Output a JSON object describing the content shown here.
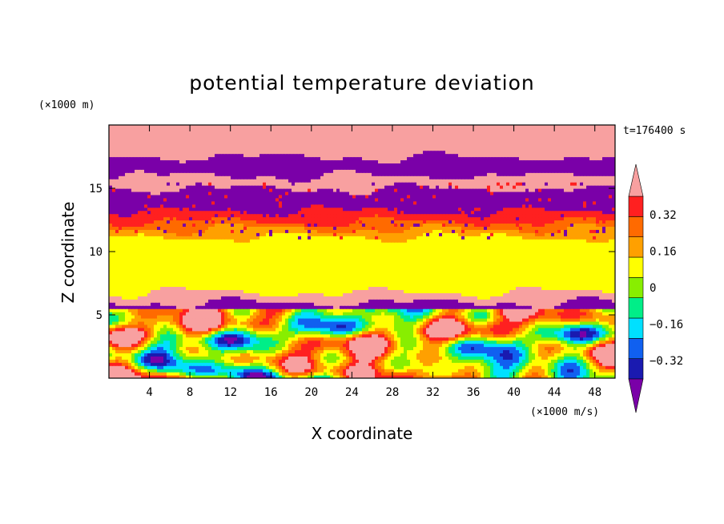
{
  "chart_data": {
    "type": "heatmap",
    "title": "potential temperature deviation",
    "xlabel": "X coordinate",
    "ylabel": "Z coordinate",
    "x_unit": "(×1000 m/s)",
    "y_unit": "(×1000 m)",
    "time_label": "t=176400 s",
    "xlim": [
      0,
      50
    ],
    "ylim": [
      0,
      20
    ],
    "x_ticks": [
      4,
      8,
      12,
      16,
      20,
      24,
      28,
      32,
      36,
      40,
      44,
      48
    ],
    "y_ticks": [
      5,
      10,
      15
    ],
    "colorbar": {
      "labels": [
        "0.32",
        "0.16",
        "0",
        "−0.16",
        "−0.32"
      ],
      "label_values": [
        0.32,
        0.16,
        0,
        -0.16,
        -0.32
      ],
      "levels": [
        -0.4,
        -0.32,
        -0.24,
        -0.16,
        -0.08,
        0,
        0.08,
        0.16,
        0.24,
        0.32,
        0.4
      ],
      "colors": [
        "#7a00a8",
        "#1a1ab0",
        "#1060f0",
        "#00e0ff",
        "#00ee88",
        "#88ee00",
        "#ffff00",
        "#ffa000",
        "#ff6a00",
        "#ff2020",
        "#f8a0a0"
      ],
      "extends": "both"
    },
    "layers": [
      {
        "z": [
          17.5,
          20.0
        ],
        "value": 0.45
      },
      {
        "z": [
          16.0,
          17.5
        ],
        "value": -0.45
      },
      {
        "z": [
          15.0,
          16.0
        ],
        "value": 0.45
      },
      {
        "z": [
          13.2,
          15.0
        ],
        "value": -0.45
      },
      {
        "z": [
          12.4,
          13.2
        ],
        "value": 0.3
      },
      {
        "z": [
          11.8,
          12.4
        ],
        "value": 0.22
      },
      {
        "z": [
          11.2,
          11.8
        ],
        "value": 0.14
      },
      {
        "z": [
          7.2,
          11.2
        ],
        "value": 0.03
      },
      {
        "z": [
          6.8,
          7.2
        ],
        "value": 0.06
      },
      {
        "z": [
          6.0,
          6.8
        ],
        "value": 0.45
      },
      {
        "z": [
          5.4,
          6.0
        ],
        "value": -0.45
      },
      {
        "z": [
          0.0,
          5.4
        ],
        "value": "turbulent"
      }
    ]
  }
}
